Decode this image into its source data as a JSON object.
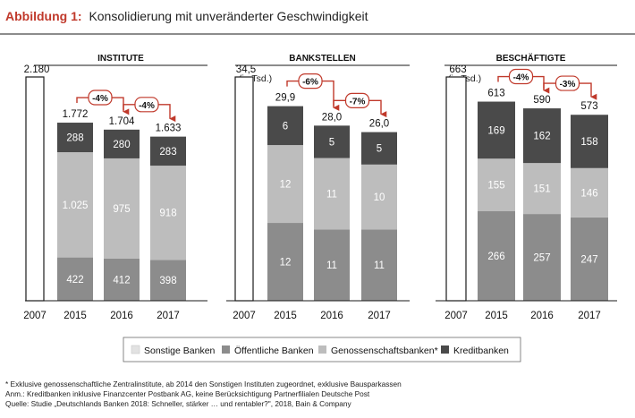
{
  "title": {
    "label": "Abbildung 1:",
    "text": "Konsolidierung mit unveränderter Geschwindigkeit"
  },
  "colors": {
    "accent": "#c0392b",
    "kreditbanken": "#4a4a4a",
    "oeffentliche_banken": "#8c8c8c",
    "genossenschaftsbanken": "#bdbdbd",
    "sonstige_banken": "#e2e2e2",
    "baseline_2007": "#ffffff"
  },
  "chart_data": [
    {
      "type": "bar",
      "title": "INSTITUTE",
      "unit": "",
      "categories": [
        "2007",
        "2015",
        "2016",
        "2017"
      ],
      "totals": [
        "2.180",
        "1.772",
        "1.704",
        "1.633"
      ],
      "total_values": [
        2180,
        1772,
        1704,
        1633
      ],
      "series": [
        {
          "name": "Öffentliche Banken",
          "values": [
            null,
            422,
            412,
            398
          ],
          "labels": [
            "",
            "422",
            "412",
            "398"
          ]
        },
        {
          "name": "Genossenschaftsbanken*",
          "values": [
            null,
            1025,
            975,
            918
          ],
          "labels": [
            "",
            "1.025",
            "975",
            "918"
          ]
        },
        {
          "name": "Kreditbanken",
          "values": [
            null,
            288,
            280,
            283
          ],
          "labels": [
            "",
            "288",
            "280",
            "283"
          ]
        }
      ],
      "changes": [
        {
          "label": "-4%",
          "from": "2015",
          "to": "2016"
        },
        {
          "label": "-4%",
          "from": "2016",
          "to": "2017"
        }
      ]
    },
    {
      "type": "bar",
      "title": "BANKSTELLEN",
      "unit": "(in Tsd.)",
      "categories": [
        "2007",
        "2015",
        "2016",
        "2017"
      ],
      "totals": [
        "34,5",
        "29,9",
        "28,0",
        "26,0"
      ],
      "total_values": [
        34.5,
        29.9,
        28.0,
        26.0
      ],
      "series": [
        {
          "name": "Öffentliche Banken",
          "values": [
            null,
            12,
            11,
            11
          ],
          "labels": [
            "",
            "12",
            "11",
            "11"
          ]
        },
        {
          "name": "Genossenschaftsbanken*",
          "values": [
            null,
            12,
            11,
            10
          ],
          "labels": [
            "",
            "12",
            "11",
            "10"
          ]
        },
        {
          "name": "Kreditbanken",
          "values": [
            null,
            6,
            5,
            5
          ],
          "labels": [
            "",
            "6",
            "5",
            "5"
          ]
        }
      ],
      "changes": [
        {
          "label": "-6%",
          "from": "2015",
          "to": "2016"
        },
        {
          "label": "-7%",
          "from": "2016",
          "to": "2017"
        }
      ]
    },
    {
      "type": "bar",
      "title": "BESCHÄFTIGTE",
      "unit": "(in Tsd.)",
      "categories": [
        "2007",
        "2015",
        "2016",
        "2017"
      ],
      "totals": [
        "663",
        "613",
        "590",
        "573"
      ],
      "total_values": [
        663,
        613,
        590,
        573
      ],
      "series": [
        {
          "name": "Öffentliche Banken",
          "values": [
            null,
            266,
            257,
            247
          ],
          "labels": [
            "",
            "266",
            "257",
            "247"
          ]
        },
        {
          "name": "Genossenschaftsbanken*",
          "values": [
            null,
            155,
            151,
            146
          ],
          "labels": [
            "",
            "155",
            "151",
            "146"
          ]
        },
        {
          "name": "Kreditbanken",
          "values": [
            null,
            169,
            162,
            158
          ],
          "labels": [
            "",
            "169",
            "162",
            "158"
          ]
        }
      ],
      "changes": [
        {
          "label": "-4%",
          "from": "2015",
          "to": "2016"
        },
        {
          "label": "-3%",
          "from": "2016",
          "to": "2017"
        }
      ]
    }
  ],
  "legend": [
    {
      "label": "Sonstige Banken",
      "color_key": "sonstige_banken"
    },
    {
      "label": "Öffentliche Banken",
      "color_key": "oeffentliche_banken"
    },
    {
      "label": "Genossenschaftsbanken*",
      "color_key": "genossenschaftsbanken"
    },
    {
      "label": "Kreditbanken",
      "color_key": "kreditbanken"
    }
  ],
  "footnotes": [
    "* Exklusive genossenschaftliche Zentralinstitute, ab 2014 den Sonstigen Instituten zugeordnet, exklusive Bausparkassen",
    "Anm.: Kreditbanken inklusive Finanzcenter Postbank AG, keine Berücksichtigung Partnerfilialen Deutsche Post",
    "Quelle: Studie „Deutschlands Banken 2018: Schneller, stärker … und rentabler?\", 2018, Bain & Company"
  ]
}
